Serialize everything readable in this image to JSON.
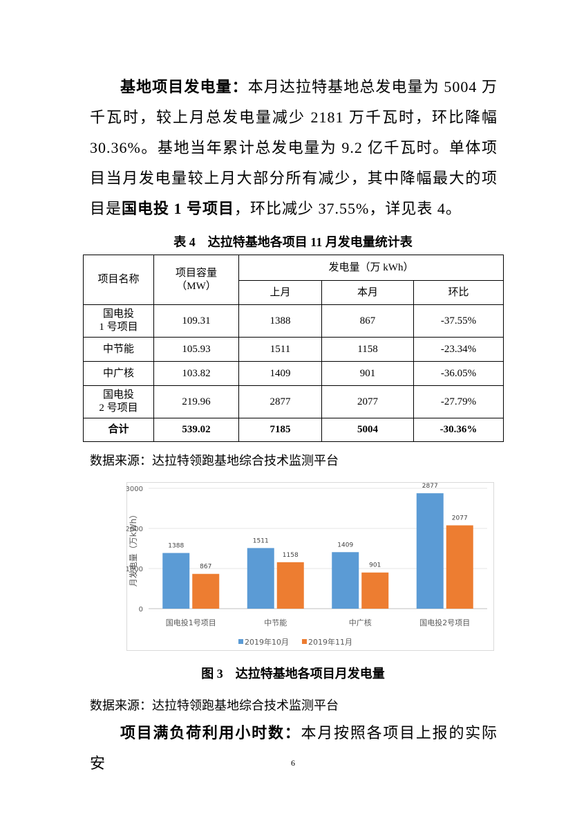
{
  "paragraph1": {
    "lead": "基地项目发电量：",
    "text1": "本月达拉特基地总发电量为 5004 万千瓦时，较上月总发电量减少 2181 万千瓦时，环比降幅 30.36%。基地当年累计总发电量为 9.2 亿千瓦时。单体项目当月发电量较上月大部分所有减少，其中降幅最大的项目是",
    "bold2": "国电投 1 号项目",
    "text2": "，环比减少 37.55%，详见表 4。"
  },
  "table": {
    "caption": "表 4　达拉特基地各项目 11 月发电量统计表",
    "header": {
      "name": "项目名称",
      "capacity": "项目容量\n（MW）",
      "generation": "发电量（万 kWh）",
      "last": "上月",
      "current": "本月",
      "ratio": "环比"
    },
    "rows": [
      [
        "国电投\n1 号项目",
        "109.31",
        "1388",
        "867",
        "-37.55%"
      ],
      [
        "中节能",
        "105.93",
        "1511",
        "1158",
        "-23.34%"
      ],
      [
        "中广核",
        "103.82",
        "1409",
        "901",
        "-36.05%"
      ],
      [
        "国电投\n2 号项目",
        "219.96",
        "2877",
        "2077",
        "-27.79%"
      ],
      [
        "合计",
        "539.02",
        "7185",
        "5004",
        "-30.36%"
      ]
    ],
    "source": "数据来源：达拉特领跑基地综合技术监测平台"
  },
  "chart_data": {
    "type": "bar",
    "y_label": "月发电量（万kWh）",
    "categories": [
      "国电投1号项目",
      "中节能",
      "中广核",
      "国电投2号项目"
    ],
    "series": [
      {
        "name": "2019年10月",
        "color": "#5b9bd5",
        "values": [
          1388,
          1511,
          1409,
          2877
        ]
      },
      {
        "name": "2019年11月",
        "color": "#ed7d31",
        "values": [
          867,
          1158,
          901,
          2077
        ]
      }
    ],
    "ylim": [
      0,
      3000
    ],
    "yticks": [
      0,
      1000,
      2000,
      3000
    ],
    "grid": true,
    "legend": "bottom"
  },
  "figure": {
    "caption": "图 3　达拉特基地各项目月发电量",
    "source": "数据来源：达拉特领跑基地综合技术监测平台"
  },
  "paragraph2": {
    "lead": "项目满负荷利用小时数：",
    "text": "本月按照各项目上报的实际安"
  },
  "page_number": "6"
}
